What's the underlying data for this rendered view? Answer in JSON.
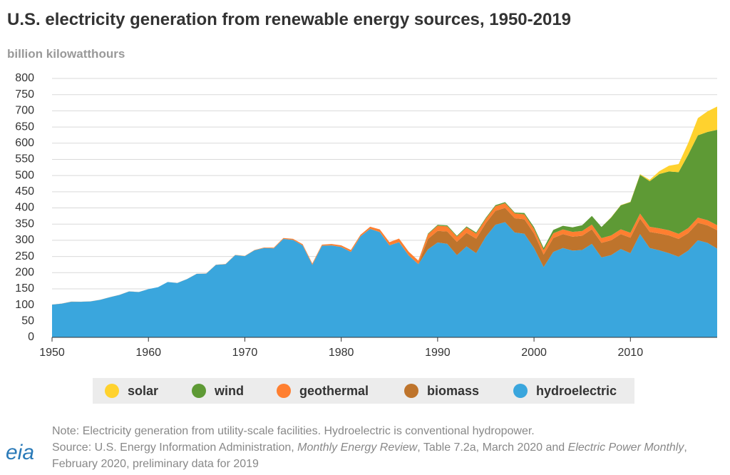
{
  "chart_data": {
    "type": "stacked-area",
    "title": "U.S. electricity generation from renewable energy sources, 1950-2019",
    "y_label": "billion kilowatthours",
    "note": "Note: Electricity generation from utility-scale facilities. Hydroelectric is conventional hydropower.",
    "source": [
      "Source: U.S. Energy Information Administration, ",
      "Monthly Energy Review",
      ", Table 7.2a, March 2020 and ",
      "Electric Power Monthly",
      ", February 2020, preliminary data for 2019"
    ],
    "logo": "eia",
    "x": [
      1950,
      1951,
      1952,
      1953,
      1954,
      1955,
      1956,
      1957,
      1958,
      1959,
      1960,
      1961,
      1962,
      1963,
      1964,
      1965,
      1966,
      1967,
      1968,
      1969,
      1970,
      1971,
      1972,
      1973,
      1974,
      1975,
      1976,
      1977,
      1978,
      1979,
      1980,
      1981,
      1982,
      1983,
      1984,
      1985,
      1986,
      1987,
      1988,
      1989,
      1990,
      1991,
      1992,
      1993,
      1994,
      1995,
      1996,
      1997,
      1998,
      1999,
      2000,
      2001,
      2002,
      2003,
      2004,
      2005,
      2006,
      2007,
      2008,
      2009,
      2010,
      2011,
      2012,
      2013,
      2014,
      2015,
      2016,
      2017,
      2018,
      2019
    ],
    "xlim": [
      1950,
      2019
    ],
    "xticks": [
      1950,
      1960,
      1970,
      1980,
      1990,
      2000,
      2010
    ],
    "ylim": [
      0,
      800
    ],
    "yticks": [
      0,
      50,
      100,
      150,
      200,
      250,
      300,
      350,
      400,
      450,
      500,
      550,
      600,
      650,
      700,
      750,
      800
    ],
    "grid": true,
    "series": [
      {
        "name": "solar",
        "color": "#FFD22E",
        "values": [
          0,
          0,
          0,
          0,
          0,
          0,
          0,
          0,
          0,
          0,
          0,
          0,
          0,
          0,
          0,
          0,
          0,
          0,
          0,
          0,
          0,
          0,
          0,
          0,
          0,
          0,
          0,
          0,
          0,
          0,
          0,
          0,
          0,
          0,
          0,
          0,
          0,
          0,
          0,
          0,
          0,
          0,
          0,
          0,
          0,
          0,
          0,
          0,
          0,
          0,
          0,
          0,
          0,
          0,
          0,
          0,
          0,
          0,
          0.9,
          0.9,
          1.2,
          1.8,
          4.3,
          9.0,
          17.7,
          24.9,
          36.1,
          53.3,
          63.8,
          71.9
        ]
      },
      {
        "name": "wind",
        "color": "#5E9A35",
        "values": [
          0,
          0,
          0,
          0,
          0,
          0,
          0,
          0,
          0,
          0,
          0,
          0,
          0,
          0,
          0,
          0,
          0,
          0,
          0,
          0,
          0,
          0,
          0,
          0,
          0,
          0,
          0,
          0,
          0,
          0,
          0,
          0,
          0,
          0,
          0,
          0,
          0,
          0,
          0,
          2.1,
          2.8,
          2.9,
          2.9,
          3.0,
          3.4,
          3.2,
          3.2,
          3.3,
          3.0,
          4.5,
          5.6,
          6.7,
          10.4,
          11.2,
          14.1,
          17.8,
          26.6,
          34.5,
          55.4,
          73.9,
          94.7,
          120.2,
          140.8,
          167.8,
          181.7,
          190.7,
          226.9,
          254.3,
          272.7,
          294.9
        ]
      },
      {
        "name": "geothermal",
        "color": "#FF7F30",
        "values": [
          0,
          0,
          0,
          0,
          0,
          0,
          0,
          0,
          0,
          0,
          0,
          0,
          0,
          0.2,
          0.2,
          0.2,
          0.3,
          0.3,
          0.4,
          0.6,
          0.5,
          0.5,
          1.5,
          1.9,
          2.5,
          3.2,
          3.6,
          3.6,
          3.0,
          3.9,
          5,
          5.7,
          4.8,
          6.1,
          7.7,
          9.3,
          10.3,
          10.8,
          10.3,
          14.6,
          16,
          16,
          16,
          16.8,
          15.5,
          13.4,
          14.3,
          14.7,
          14.8,
          14.8,
          14.1,
          13.7,
          14.5,
          14.4,
          14.8,
          14.7,
          14.6,
          14.6,
          14.8,
          15.0,
          15.2,
          15.3,
          15.6,
          15.8,
          15.9,
          15.9,
          15.8,
          15.9,
          15.9,
          15.5
        ]
      },
      {
        "name": "biomass",
        "color": "#BE742C",
        "values": [
          0.4,
          0.4,
          0.4,
          0.3,
          0.3,
          0.3,
          0.3,
          0.3,
          0.2,
          0.2,
          0.1,
          0.1,
          0.1,
          0.1,
          0.1,
          0.3,
          0.3,
          0.3,
          0.3,
          0.3,
          0.4,
          0.4,
          0.3,
          0.3,
          0.3,
          0.2,
          0.4,
          0.4,
          0.4,
          0.4,
          0.3,
          0.3,
          0.3,
          0.7,
          0.8,
          0.8,
          0.9,
          0.9,
          0.9,
          32,
          36,
          38,
          41,
          42,
          45,
          42,
          43,
          44,
          44,
          45,
          45,
          39,
          43,
          43,
          43,
          44,
          45,
          45,
          46,
          46,
          48,
          48,
          50,
          52,
          55,
          55,
          54,
          54,
          54,
          57
        ]
      },
      {
        "name": "hydroelectric",
        "color": "#3AA6DD",
        "values": [
          101,
          104,
          110,
          110,
          111,
          116,
          124,
          131,
          142,
          140,
          149,
          155,
          171,
          168,
          180,
          196,
          197,
          224,
          226,
          254,
          251,
          269,
          276,
          275,
          304,
          301,
          284,
          224,
          283,
          284,
          279,
          264,
          312,
          335,
          325,
          284,
          294,
          253,
          226,
          272,
          293,
          289,
          254,
          281,
          260,
          311,
          348,
          356,
          324,
          320,
          276,
          217,
          264,
          276,
          268,
          270,
          289,
          247,
          254,
          273,
          260,
          319,
          276,
          269,
          260,
          249,
          268,
          300,
          292,
          274
        ]
      }
    ]
  }
}
